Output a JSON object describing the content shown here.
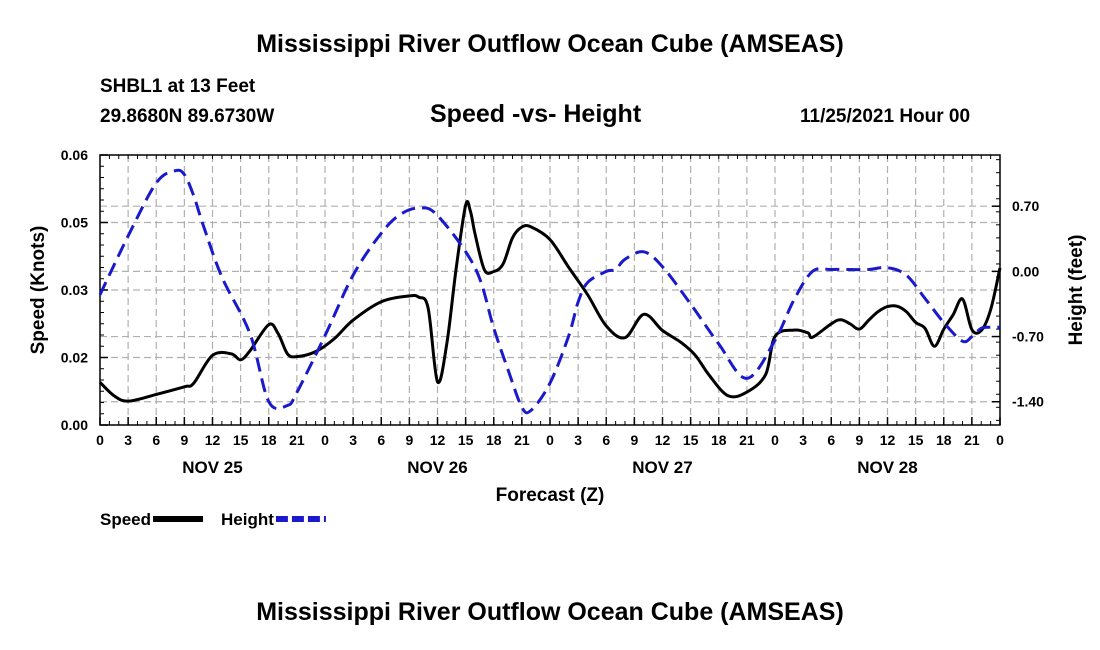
{
  "header": {
    "title": "Mississippi River Outflow Ocean Cube (AMSEAS)",
    "station": "SHBL1 at 13 Feet",
    "coords": "29.8680N  89.6730W",
    "subtitle": "Speed -vs- Height",
    "datetime": "11/25/2021 Hour 00",
    "footer_title": "Mississippi River Outflow Ocean Cube (AMSEAS)"
  },
  "chart_data": {
    "type": "line",
    "title": "Speed -vs- Height",
    "xlabel": "Forecast (Z)",
    "ylabel_left": "Speed (Knots)",
    "ylabel_right": "Height (feet)",
    "xlim": [
      0,
      96
    ],
    "ylim_left": [
      0,
      0.06
    ],
    "ylim_right": [
      -1.65,
      1.25
    ],
    "hour_ticks": [
      0,
      3,
      6,
      9,
      12,
      15,
      18,
      21,
      0,
      3,
      6,
      9,
      12,
      15,
      18,
      21,
      0,
      3,
      6,
      9,
      12,
      15,
      18,
      21,
      0,
      3,
      6,
      9,
      12,
      15,
      18,
      21,
      0
    ],
    "day_labels": [
      {
        "label": "NOV 25",
        "x": 12
      },
      {
        "label": "NOV 26",
        "x": 36
      },
      {
        "label": "NOV 27",
        "x": 60
      },
      {
        "label": "NOV 28",
        "x": 84
      }
    ],
    "left_ticks": [
      {
        "value": 0.0,
        "label": "0.00"
      },
      {
        "value": 0.015,
        "label": "0.02"
      },
      {
        "value": 0.03,
        "label": "0.03"
      },
      {
        "value": 0.045,
        "label": "0.05"
      },
      {
        "value": 0.06,
        "label": "0.06"
      }
    ],
    "right_ticks": [
      {
        "value": 0.7,
        "label": "0.70"
      },
      {
        "value": 0.0,
        "label": "0.00"
      },
      {
        "value": -0.7,
        "label": "-0.70"
      },
      {
        "value": -1.4,
        "label": "-1.40"
      }
    ],
    "grid": true,
    "legend": "bottom-left",
    "series": [
      {
        "name": "Speed",
        "axis": "left",
        "color": "#000000",
        "dash": "solid",
        "x": [
          0,
          1.5,
          3,
          6,
          9,
          10,
          12,
          14,
          15,
          16,
          18,
          19,
          20,
          21,
          23,
          25,
          27,
          30,
          33,
          34,
          35,
          36,
          37,
          38,
          39,
          39.5,
          40,
          41,
          42,
          43,
          44,
          45,
          46,
          48,
          50,
          52,
          54,
          56,
          58,
          60,
          62,
          63.5,
          65,
          67,
          69,
          71,
          72,
          74,
          75.5,
          76,
          78,
          79,
          80,
          81,
          82,
          83,
          84,
          85,
          86,
          87,
          88,
          89,
          90,
          91,
          92,
          93,
          94,
          95,
          96
        ],
        "values": [
          0.0095,
          0.0065,
          0.0053,
          0.0068,
          0.0085,
          0.0093,
          0.0155,
          0.0158,
          0.0145,
          0.0165,
          0.0223,
          0.0203,
          0.0158,
          0.0152,
          0.0163,
          0.0192,
          0.0233,
          0.0274,
          0.0287,
          0.0284,
          0.026,
          0.0096,
          0.0182,
          0.035,
          0.0488,
          0.0476,
          0.0425,
          0.0345,
          0.0341,
          0.0358,
          0.0416,
          0.044,
          0.044,
          0.0412,
          0.035,
          0.029,
          0.022,
          0.0194,
          0.0246,
          0.021,
          0.0183,
          0.0155,
          0.011,
          0.0065,
          0.0073,
          0.0112,
          0.0197,
          0.0211,
          0.0205,
          0.0195,
          0.0225,
          0.0234,
          0.0225,
          0.0213,
          0.0233,
          0.0252,
          0.0263,
          0.0264,
          0.0252,
          0.0228,
          0.0215,
          0.0175,
          0.0213,
          0.0245,
          0.028,
          0.0212,
          0.021,
          0.0256,
          0.0349
        ]
      },
      {
        "name": "Height",
        "axis": "right",
        "color": "#1a1acc",
        "dash": "dashed",
        "x": [
          0,
          3,
          6,
          8,
          9,
          10,
          11,
          13,
          16,
          18,
          20,
          21,
          24,
          27,
          30,
          32,
          34,
          36,
          40,
          42,
          43.5,
          45,
          46,
          48,
          50,
          51,
          52,
          54,
          55,
          56,
          58,
          60,
          63,
          66,
          69,
          72,
          74,
          76,
          78,
          80,
          82,
          84,
          86,
          88,
          90,
          92,
          93,
          94,
          95,
          96
        ],
        "values": [
          -0.25,
          0.38,
          0.95,
          1.08,
          1.04,
          0.81,
          0.5,
          -0.06,
          -0.67,
          -1.4,
          -1.44,
          -1.3,
          -0.69,
          -0.04,
          0.41,
          0.61,
          0.68,
          0.6,
          0.04,
          -0.61,
          -1.05,
          -1.46,
          -1.49,
          -1.2,
          -0.69,
          -0.33,
          -0.12,
          0.0,
          0.02,
          0.13,
          0.21,
          0.05,
          -0.35,
          -0.78,
          -1.15,
          -0.74,
          -0.31,
          0.0,
          0.02,
          0.02,
          0.02,
          0.04,
          -0.04,
          -0.29,
          -0.55,
          -0.75,
          -0.7,
          -0.61,
          -0.6,
          -0.6
        ]
      }
    ]
  }
}
